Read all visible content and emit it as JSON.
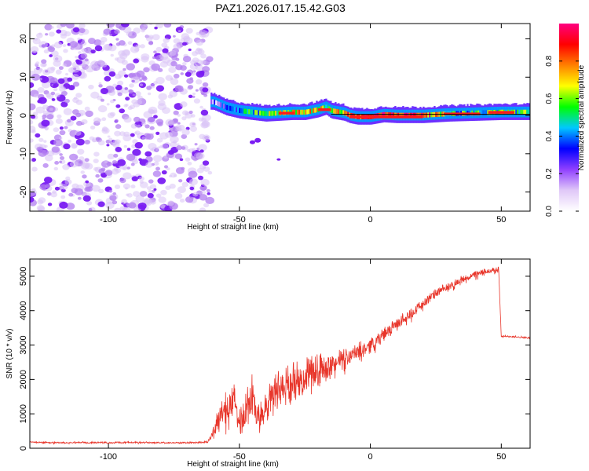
{
  "title": "PAZ1.2026.017.15.42.G03",
  "chart_data": [
    {
      "type": "heatmap",
      "xlabel": "Height of straight line (km)",
      "ylabel": "Frequency (Hz)",
      "xlim": [
        -130,
        61
      ],
      "ylim": [
        -25,
        24
      ],
      "xticks": [
        -100,
        -50,
        0,
        50
      ],
      "yticks": [
        -20,
        -10,
        0,
        10,
        20
      ],
      "noise_region_x": [
        -130,
        -61
      ],
      "ridge": {
        "name": "dominant frequency ridge",
        "x": [
          -60,
          -55,
          -50,
          -45,
          -40,
          -35,
          -30,
          -25,
          -20,
          -17,
          -15,
          -10,
          -8,
          -5,
          0,
          5,
          10,
          20,
          30,
          40,
          50,
          61
        ],
        "freq_hz": [
          3.5,
          2.0,
          1.2,
          0.8,
          0.4,
          0.6,
          0.8,
          0.8,
          1.5,
          2.2,
          1.2,
          0.6,
          0.0,
          -0.4,
          -0.4,
          0.2,
          0.0,
          0.0,
          0.4,
          0.6,
          0.8,
          0.8
        ],
        "amplitude": [
          0.2,
          0.3,
          0.4,
          0.45,
          0.55,
          0.6,
          0.65,
          0.7,
          0.65,
          0.6,
          0.65,
          0.75,
          0.8,
          0.85,
          0.9,
          0.9,
          0.9,
          0.9,
          0.5,
          0.5,
          0.55,
          0.5
        ]
      },
      "colorbar": {
        "label": "Normalized spectral amplitude",
        "range": [
          0,
          1
        ],
        "ticks": [
          "0.0",
          "0.2",
          "0.4",
          "0.6",
          "0.8"
        ],
        "colors": [
          "#ffffff",
          "#e0c8f8",
          "#9040ff",
          "#0000ff",
          "#00c8ff",
          "#00ff00",
          "#ffff00",
          "#ff8000",
          "#ff0000",
          "#ff0080"
        ]
      }
    },
    {
      "type": "line",
      "xlabel": "Height of straight line (km)",
      "ylabel": "SNR (10 * v/v)",
      "xlim": [
        -130,
        61
      ],
      "ylim": [
        0,
        5500
      ],
      "xticks": [
        -100,
        -50,
        0,
        50
      ],
      "yticks": [
        0,
        1000,
        2000,
        3000,
        4000,
        5000
      ],
      "series": [
        {
          "name": "SNR",
          "color": "#e8362b",
          "x": [
            -130,
            -120,
            -110,
            -100,
            -90,
            -80,
            -70,
            -62,
            -60,
            -58,
            -55,
            -52,
            -50,
            -48,
            -46,
            -44,
            -42,
            -40,
            -38,
            -35,
            -30,
            -25,
            -20,
            -15,
            -10,
            -5,
            0,
            5,
            10,
            15,
            20,
            25,
            30,
            35,
            40,
            45,
            48,
            49,
            50,
            55,
            61
          ],
          "y": [
            180,
            160,
            170,
            160,
            170,
            160,
            160,
            180,
            450,
            900,
            1200,
            1300,
            900,
            1000,
            1500,
            1200,
            800,
            1100,
            1500,
            1700,
            1900,
            2100,
            2300,
            2400,
            2600,
            2800,
            3000,
            3300,
            3600,
            3900,
            4200,
            4500,
            4700,
            4900,
            5050,
            5150,
            5200,
            5180,
            3250,
            3250,
            3200
          ],
          "spread": [
            40,
            40,
            40,
            40,
            40,
            40,
            40,
            60,
            300,
            600,
            800,
            900,
            900,
            1000,
            1300,
            1000,
            800,
            900,
            1100,
            1000,
            900,
            900,
            800,
            700,
            500,
            400,
            400,
            350,
            300,
            300,
            250,
            250,
            200,
            200,
            180,
            150,
            150,
            150,
            50,
            50,
            50
          ]
        }
      ]
    }
  ]
}
